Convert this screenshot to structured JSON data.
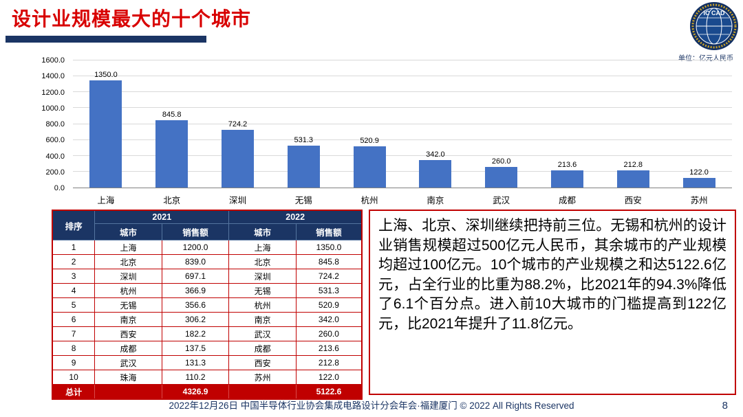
{
  "header": {
    "title": "设计业规模最大的十个城市",
    "logo_text": "IC CAD",
    "unit_label": "单位：亿元人民币"
  },
  "chart_data": {
    "type": "bar",
    "title": "",
    "xlabel": "",
    "ylabel": "",
    "unit": "单位：亿元人民币",
    "categories": [
      "上海",
      "北京",
      "深圳",
      "无锡",
      "杭州",
      "南京",
      "武汉",
      "成都",
      "西安",
      "苏州"
    ],
    "values": [
      1350.0,
      845.8,
      724.2,
      531.3,
      520.9,
      342.0,
      260.0,
      213.6,
      212.8,
      122.0
    ],
    "ylim": [
      0,
      1600
    ],
    "ytick_step": 200,
    "grid": true,
    "legend": false,
    "bar_color": "#4472c4"
  },
  "table": {
    "headers": {
      "rank": "排序",
      "y2021": "2021",
      "y2022": "2022",
      "city": "城市",
      "sales": "销售额"
    },
    "rows": [
      [
        "1",
        "上海",
        "1200.0",
        "上海",
        "1350.0"
      ],
      [
        "2",
        "北京",
        "839.0",
        "北京",
        "845.8"
      ],
      [
        "3",
        "深圳",
        "697.1",
        "深圳",
        "724.2"
      ],
      [
        "4",
        "杭州",
        "366.9",
        "无锡",
        "531.3"
      ],
      [
        "5",
        "无锡",
        "356.6",
        "杭州",
        "520.9"
      ],
      [
        "6",
        "南京",
        "306.2",
        "南京",
        "342.0"
      ],
      [
        "7",
        "西安",
        "182.2",
        "武汉",
        "260.0"
      ],
      [
        "8",
        "成都",
        "137.5",
        "成都",
        "213.6"
      ],
      [
        "9",
        "武汉",
        "131.3",
        "西安",
        "212.8"
      ],
      [
        "10",
        "珠海",
        "110.2",
        "苏州",
        "122.0"
      ]
    ],
    "total_row": [
      "总计",
      "",
      "4326.9",
      "",
      "5122.6"
    ]
  },
  "commentary": {
    "text": "上海、北京、深圳继续把持前三位。无锡和杭州的设计业销售规模超过500亿元人民币，其余城市的产业规模均超过100亿元。10个城市的产业规模之和达5122.6亿元，占全行业的比重为88.2%，比2021年的94.3%降低了6.1个百分点。进入前10大城市的门槛提高到122亿元，比2021年提升了11.8亿元。"
  },
  "footer": {
    "text": "2022年12月26日 中国半导体行业协会集成电路设计分会年会·福建厦门 © 2022 All Rights Reserved",
    "page_number": "8"
  },
  "colors": {
    "title_red": "#d80000",
    "navy": "#1b3564",
    "bar_blue": "#4472c4",
    "table_red": "#c00000"
  }
}
